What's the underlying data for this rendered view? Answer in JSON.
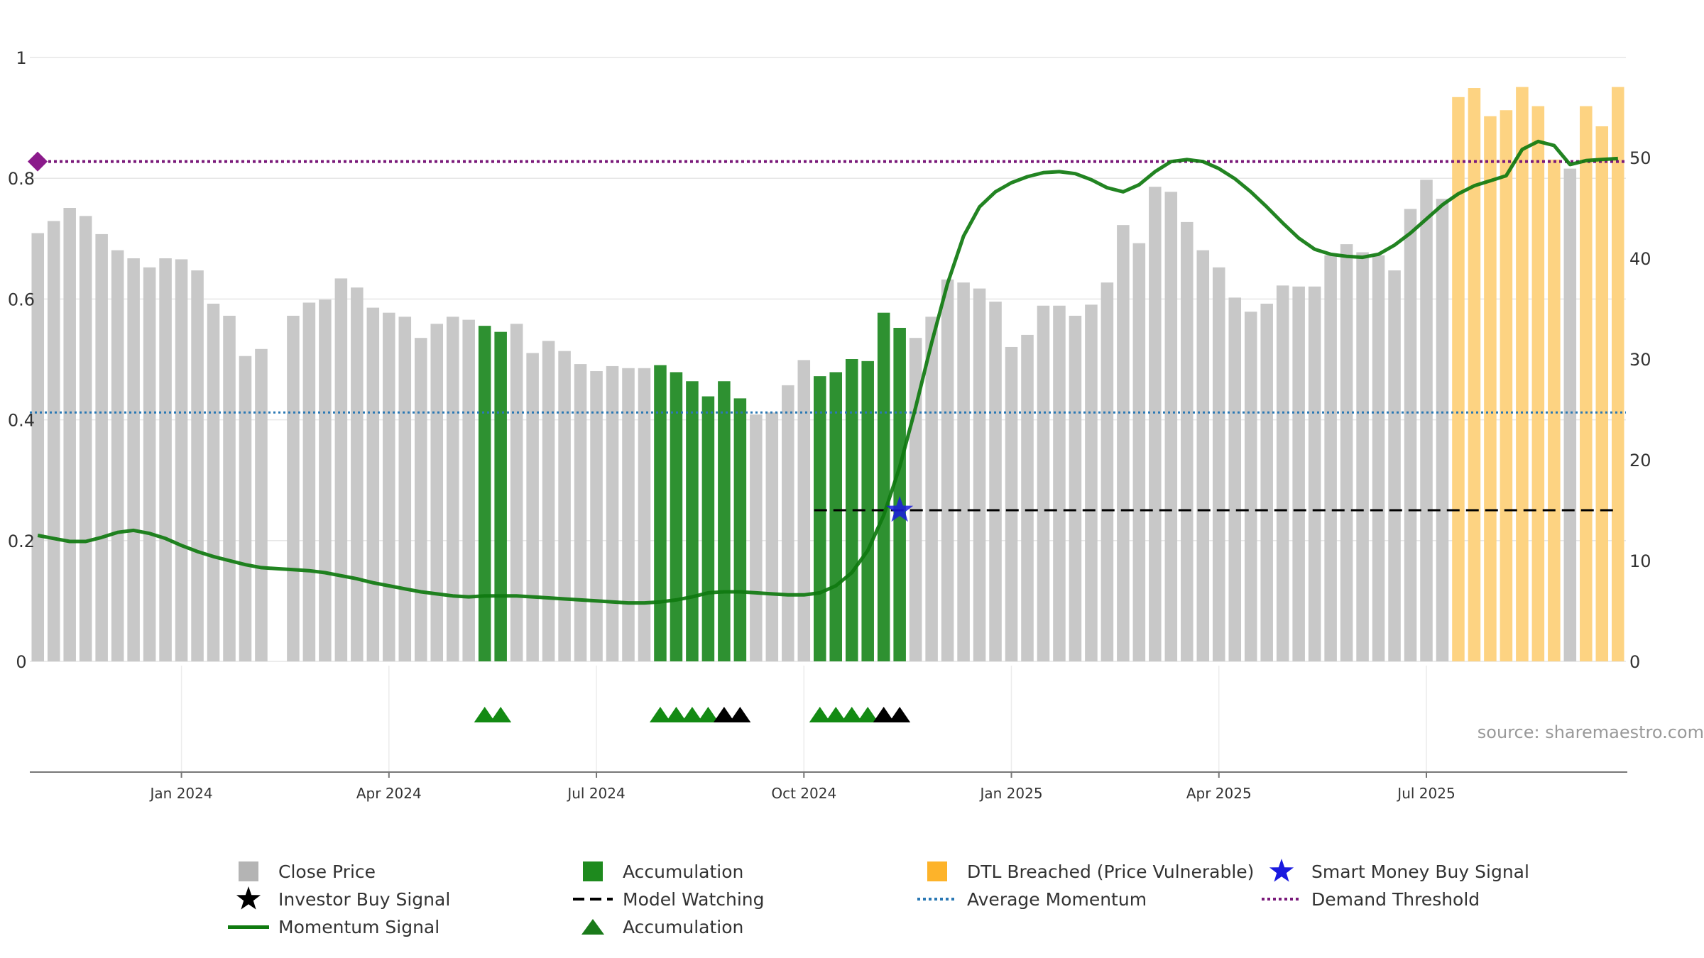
{
  "chart_data": {
    "type": "bar+line",
    "source_label": "source: sharemaestro.com",
    "left_axis": {
      "ticks": [
        "0",
        "0.2",
        "0.4",
        "0.6",
        "0.8",
        "1"
      ],
      "range": [
        0,
        1
      ]
    },
    "right_axis": {
      "ticks": [
        "0",
        "10",
        "20",
        "30",
        "40",
        "50"
      ],
      "range": [
        0,
        60
      ]
    },
    "x_ticks": [
      {
        "label": "Jan 2024",
        "index": 9
      },
      {
        "label": "Apr 2024",
        "index": 22
      },
      {
        "label": "Jul 2024",
        "index": 35
      },
      {
        "label": "Oct 2024",
        "index": 48
      },
      {
        "label": "Jan 2025",
        "index": 61
      },
      {
        "label": "Apr 2025",
        "index": 74
      },
      {
        "label": "Jul 2025",
        "index": 87
      }
    ],
    "colors": {
      "close": "#c8c8c8",
      "accumulation": "#2e9131",
      "breached": "#fdd382",
      "momentum": "#0f7a0f",
      "average": "#2a78b4",
      "threshold": "#7a1a7a",
      "watching": "#000000",
      "smart_money": "#1a1adf"
    },
    "close_prices": [
      42.5,
      43.7,
      45,
      44.2,
      42.4,
      40.8,
      40,
      39.1,
      40,
      39.9,
      38.8,
      35.5,
      34.3,
      30.3,
      31,
      null,
      34.3,
      35.6,
      35.9,
      38,
      37.1,
      35.1,
      34.6,
      34.2,
      32.1,
      33.5,
      34.2,
      33.9,
      33.3,
      32.7,
      33.5,
      30.6,
      31.8,
      30.8,
      29.5,
      28.8,
      29.3,
      29.1,
      29.1,
      29.4,
      28.7,
      27.8,
      26.3,
      27.8,
      26.1,
      24.5,
      24.7,
      27.4,
      29.9,
      28.3,
      28.7,
      30,
      29.8,
      34.6,
      33.1,
      32.1,
      34.2,
      37.9,
      37.6,
      37,
      35.7,
      31.2,
      32.4,
      35.3,
      35.3,
      34.3,
      35.4,
      37.6,
      43.3,
      41.5,
      47.1,
      46.6,
      43.6,
      40.8,
      39.1,
      36.1,
      34.7,
      35.5,
      37.3,
      37.2,
      37.2,
      40.3,
      41.4,
      40.6,
      40.3,
      38.8,
      44.9,
      47.8,
      45.9,
      56,
      56.9,
      54.1,
      54.7,
      57,
      55.1,
      49.8,
      48.9,
      55.1,
      53.1,
      57
    ],
    "accumulation_bars": [
      28,
      29,
      39,
      40,
      41,
      42,
      43,
      44,
      49,
      50,
      51,
      52,
      53,
      54
    ],
    "dtl_breached_bars": [
      89,
      90,
      91,
      92,
      93,
      94,
      95,
      97,
      98,
      99
    ],
    "momentum": [
      12.5,
      12.2,
      11.9,
      11.9,
      12.3,
      12.8,
      13,
      12.7,
      12.2,
      11.5,
      10.9,
      10.4,
      10,
      9.6,
      9.3,
      9.2,
      9.1,
      9,
      8.8,
      8.5,
      8.2,
      7.8,
      7.5,
      7.2,
      6.9,
      6.7,
      6.5,
      6.4,
      6.5,
      6.5,
      6.5,
      6.4,
      6.3,
      6.2,
      6.1,
      6,
      5.9,
      5.8,
      5.8,
      5.9,
      6.1,
      6.4,
      6.8,
      6.9,
      6.9,
      6.8,
      6.7,
      6.6,
      6.6,
      6.8,
      7.5,
      8.8,
      11,
      14.5,
      19.3,
      25.2,
      31.6,
      37.5,
      42.2,
      45.1,
      46.6,
      47.5,
      48.1,
      48.5,
      48.6,
      48.4,
      47.8,
      47,
      46.6,
      47.3,
      48.6,
      49.6,
      49.8,
      49.6,
      48.9,
      47.9,
      46.6,
      45.1,
      43.5,
      42,
      40.9,
      40.4,
      40.2,
      40.1,
      40.4,
      41.3,
      42.5,
      43.9,
      45.3,
      46.4,
      47.2,
      47.7,
      48.2,
      50.8,
      51.6,
      51.2,
      49.3,
      49.7,
      49.8,
      49.9
    ],
    "average_momentum": 24.7,
    "demand_threshold": 49.6,
    "model_watching": {
      "start_index": 49,
      "end_index": 99,
      "value": 15
    },
    "smart_money_buy": {
      "index": 54,
      "value": 15
    },
    "accumulation_markers": [
      28,
      29,
      39,
      40,
      41,
      42,
      49,
      50,
      51,
      52
    ],
    "investor_buy_markers": [
      43,
      44,
      53,
      54
    ],
    "legend": [
      {
        "label": "Close Price",
        "symbol": "square",
        "color": "#c8c8c8"
      },
      {
        "label": "Investor Buy Signal",
        "symbol": "star",
        "color": "#000000"
      },
      {
        "label": "Momentum Signal",
        "symbol": "line",
        "color": "#0f7a0f"
      },
      {
        "label": "Accumulation",
        "symbol": "square",
        "color": "#2e9131"
      },
      {
        "label": "Model Watching",
        "symbol": "dash",
        "color": "#000000"
      },
      {
        "label": "Accumulation",
        "symbol": "triangle",
        "color": "#1a7a1a"
      },
      {
        "label": "DTL Breached (Price Vulnerable)",
        "symbol": "square",
        "color": "#fdb32a"
      },
      {
        "label": "Average Momentum",
        "symbol": "dotline",
        "color": "#2a78b4"
      },
      {
        "label": "Smart Money Buy Signal",
        "symbol": "star",
        "color": "#1a1adf"
      },
      {
        "label": "Demand Threshold",
        "symbol": "dotline",
        "color": "#7a1a7a"
      }
    ]
  }
}
